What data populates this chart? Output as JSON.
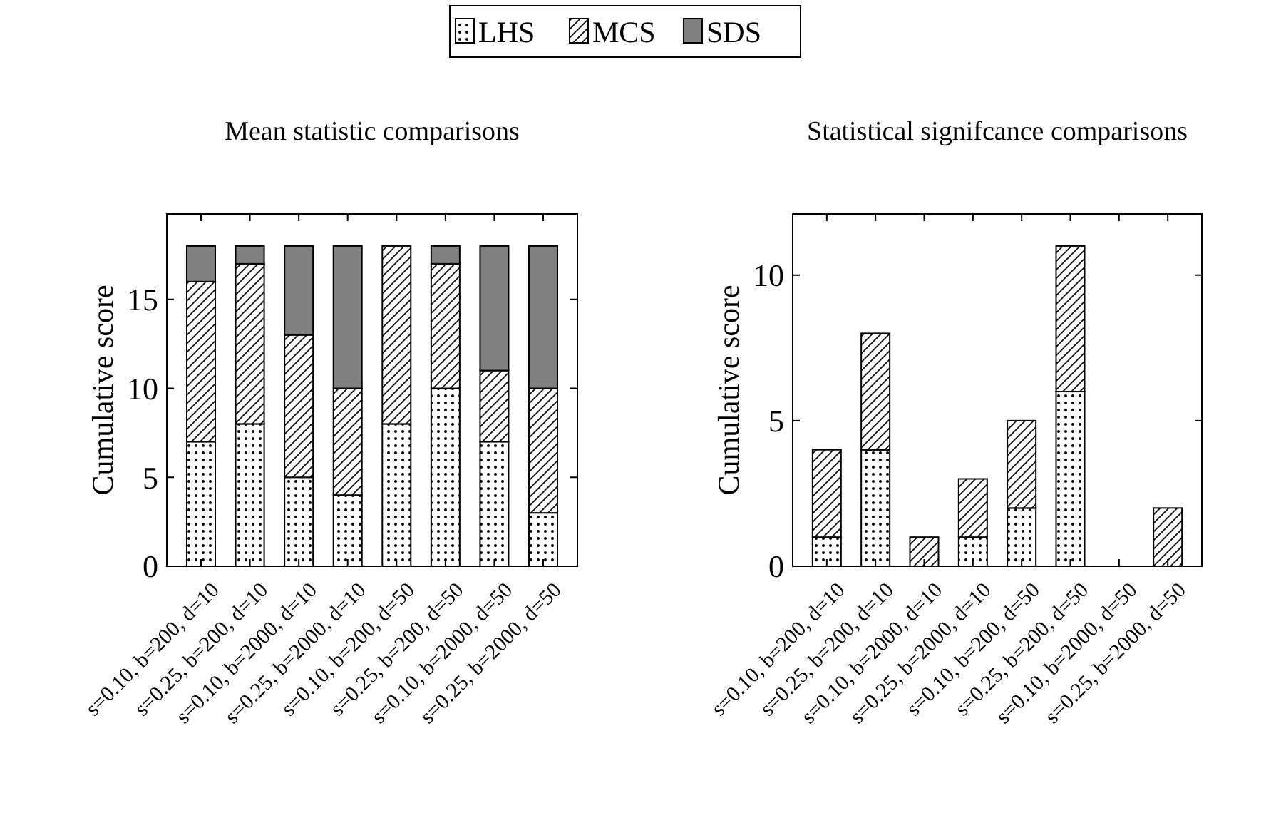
{
  "chart_data": [
    {
      "type": "bar",
      "title": "Mean statistic comparisons",
      "ylabel": "Cumulative score",
      "stacked": true,
      "legend": "top",
      "categories": [
        "s=0.10, b=200, d=10",
        "s=0.25, b=200, d=10",
        "s=0.10, b=2000, d=10",
        "s=0.25, b=2000, d=10",
        "s=0.10, b=200, d=50",
        "s=0.25, b=200, d=50",
        "s=0.10, b=2000, d=50",
        "s=0.25, b=2000, d=50"
      ],
      "series": [
        {
          "name": "LHS",
          "color": "#ffffff",
          "values": [
            7,
            8,
            5,
            4,
            8,
            10,
            7,
            3
          ]
        },
        {
          "name": "MCS",
          "color": "#ffffff",
          "values": [
            9,
            9,
            8,
            6,
            10,
            7,
            4,
            7
          ]
        },
        {
          "name": "SDS",
          "color": "#808080",
          "values": [
            2,
            1,
            5,
            8,
            0,
            1,
            7,
            8
          ]
        }
      ],
      "ylim": [
        0,
        19.8
      ],
      "yticks": [
        0,
        5,
        10,
        15
      ]
    },
    {
      "type": "bar",
      "title": "Statistical signifcance comparisons",
      "ylabel": "Cumulative score",
      "stacked": true,
      "categories": [
        "s=0.10, b=200, d=10",
        "s=0.25, b=200, d=10",
        "s=0.10, b=2000, d=10",
        "s=0.25, b=2000, d=10",
        "s=0.10, b=200, d=50",
        "s=0.25, b=200, d=50",
        "s=0.10, b=2000, d=50",
        "s=0.25, b=2000, d=50"
      ],
      "series": [
        {
          "color": "#ffffff",
          "values": [
            1,
            4,
            0,
            1,
            2,
            6,
            0,
            0
          ]
        },
        {
          "color": "#ffffff",
          "values": [
            3,
            4,
            1,
            2,
            3,
            5,
            0,
            2
          ]
        },
        {
          "color": "#808080",
          "values": [
            0,
            0,
            0,
            0,
            0,
            0,
            0,
            0
          ]
        }
      ],
      "ylim": [
        0,
        12.1
      ],
      "yticks": [
        0,
        5,
        10
      ]
    }
  ]
}
